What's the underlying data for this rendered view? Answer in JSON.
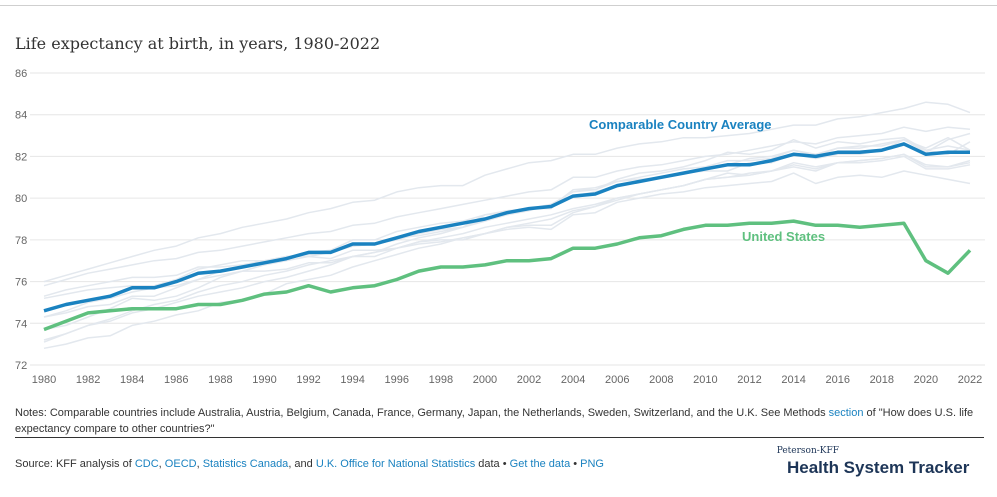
{
  "title": "Life expectancy at birth, in years, 1980-2022",
  "notes": {
    "before_link": "Notes: Comparable countries include Australia, Austria, Belgium, Canada, France, Germany, Japan, the Netherlands, Sweden, Switzerland, and the U.K. See Methods ",
    "link": "section",
    "after_link": " of \"How does U.S. life expectancy compare to other countries?\""
  },
  "source": {
    "prefix": "Source: KFF analysis of ",
    "cdc": "CDC",
    "sep1": ", ",
    "oecd": "OECD",
    "sep2": ", ",
    "statcan": "Statistics Canada",
    "sep3": ", and ",
    "ons": "U.K. Office for National Statistics",
    "data_word": " data • ",
    "get_data": "Get the data",
    "bullet": " • ",
    "png": "PNG"
  },
  "brand": {
    "small": "Peterson-KFF",
    "large": "Health System Tracker"
  },
  "colors": {
    "comparable": "#1a82c0",
    "us": "#5fc07f",
    "background_lines": "#e3e8ee",
    "grid": "#e6e6e6",
    "text": "#333333",
    "link": "#1a82c0"
  },
  "chart_data": {
    "type": "line",
    "title": "Life expectancy at birth, in years, 1980-2022",
    "xlabel": "",
    "ylabel": "",
    "xlim": [
      1980,
      2022
    ],
    "ylim": [
      72,
      86
    ],
    "x_ticks": [
      "1980",
      "1982",
      "1984",
      "1986",
      "1988",
      "1990",
      "1992",
      "1994",
      "1996",
      "1998",
      "2000",
      "2002",
      "2004",
      "2006",
      "2008",
      "2010",
      "2012",
      "2014",
      "2016",
      "2018",
      "2020",
      "2022"
    ],
    "y_ticks": [
      "72",
      "74",
      "76",
      "78",
      "80",
      "82",
      "84",
      "86"
    ],
    "grid": true,
    "x": [
      1980,
      1981,
      1982,
      1983,
      1984,
      1985,
      1986,
      1987,
      1988,
      1989,
      1990,
      1991,
      1992,
      1993,
      1994,
      1995,
      1996,
      1997,
      1998,
      1999,
      2000,
      2001,
      2002,
      2003,
      2004,
      2005,
      2006,
      2007,
      2008,
      2009,
      2010,
      2011,
      2012,
      2013,
      2014,
      2015,
      2016,
      2017,
      2018,
      2019,
      2020,
      2021,
      2022
    ],
    "series": [
      {
        "name": "Comparable Country Average",
        "label": "Comparable Country Average",
        "values": [
          74.6,
          74.9,
          75.1,
          75.3,
          75.7,
          75.7,
          76.0,
          76.4,
          76.5,
          76.7,
          76.9,
          77.1,
          77.4,
          77.4,
          77.8,
          77.8,
          78.1,
          78.4,
          78.6,
          78.8,
          79.0,
          79.3,
          79.5,
          79.6,
          80.1,
          80.2,
          80.6,
          80.8,
          81.0,
          81.2,
          81.4,
          81.6,
          81.6,
          81.8,
          82.1,
          82.0,
          82.2,
          82.2,
          82.3,
          82.6,
          82.1,
          82.2,
          82.2
        ]
      },
      {
        "name": "United States",
        "label": "United States",
        "values": [
          73.7,
          74.1,
          74.5,
          74.6,
          74.7,
          74.7,
          74.7,
          74.9,
          74.9,
          75.1,
          75.4,
          75.5,
          75.8,
          75.5,
          75.7,
          75.8,
          76.1,
          76.5,
          76.7,
          76.7,
          76.8,
          77.0,
          77.0,
          77.1,
          77.6,
          77.6,
          77.8,
          78.1,
          78.2,
          78.5,
          78.7,
          78.7,
          78.8,
          78.8,
          78.9,
          78.7,
          78.7,
          78.6,
          78.7,
          78.8,
          77.0,
          76.4,
          77.5
        ]
      }
    ],
    "background_series": [
      {
        "values": [
          76.0,
          76.3,
          76.6,
          76.9,
          77.2,
          77.5,
          77.7,
          78.1,
          78.3,
          78.6,
          78.8,
          79.0,
          79.3,
          79.5,
          79.8,
          79.9,
          80.3,
          80.5,
          80.6,
          80.6,
          81.1,
          81.4,
          81.7,
          81.8,
          82.1,
          82.1,
          82.4,
          82.6,
          82.7,
          82.9,
          82.9,
          83.0,
          83.1,
          83.3,
          83.5,
          83.5,
          83.8,
          83.9,
          84.1,
          84.3,
          84.6,
          84.5,
          84.1
        ]
      },
      {
        "values": [
          75.8,
          76.1,
          76.4,
          76.6,
          76.8,
          77.0,
          77.1,
          77.4,
          77.5,
          77.7,
          77.9,
          78.1,
          78.3,
          78.4,
          78.7,
          78.8,
          79.1,
          79.3,
          79.5,
          79.7,
          79.9,
          80.1,
          80.3,
          80.4,
          81.0,
          81.0,
          81.3,
          81.5,
          81.6,
          81.8,
          82.0,
          82.1,
          82.3,
          82.5,
          82.7,
          82.6,
          82.9,
          83.0,
          83.1,
          83.4,
          83.2,
          83.4,
          83.3
        ]
      },
      {
        "values": [
          74.3,
          74.6,
          75.0,
          75.2,
          75.5,
          75.7,
          75.8,
          76.1,
          76.3,
          76.5,
          76.8,
          77.0,
          77.2,
          77.4,
          77.7,
          77.8,
          78.0,
          78.3,
          78.5,
          78.6,
          79.0,
          79.3,
          79.5,
          79.7,
          80.3,
          80.4,
          80.8,
          81.0,
          81.2,
          81.4,
          81.5,
          81.8,
          81.8,
          81.9,
          82.3,
          82.0,
          82.4,
          82.4,
          82.6,
          82.8,
          82.4,
          82.9,
          82.3
        ]
      },
      {
        "values": [
          75.3,
          75.6,
          75.8,
          76.0,
          76.2,
          76.2,
          76.3,
          76.7,
          76.7,
          76.8,
          77.0,
          77.2,
          77.3,
          77.4,
          77.7,
          77.8,
          78.1,
          78.2,
          78.4,
          78.6,
          79.2,
          79.3,
          79.5,
          79.6,
          80.4,
          80.5,
          80.8,
          80.9,
          81.0,
          81.2,
          81.3,
          81.3,
          81.7,
          81.7,
          82.1,
          81.9,
          82.1,
          82.1,
          82.3,
          82.8,
          82.3,
          82.1,
          82.7
        ]
      },
      {
        "values": [
          74.3,
          74.5,
          74.8,
          74.9,
          75.3,
          75.3,
          75.7,
          76.1,
          76.5,
          76.7,
          76.9,
          77.1,
          77.4,
          77.5,
          78.0,
          78.0,
          78.4,
          78.6,
          78.8,
          78.9,
          79.2,
          79.4,
          79.5,
          79.5,
          80.4,
          80.4,
          80.9,
          81.2,
          81.3,
          81.5,
          81.8,
          82.2,
          82.1,
          82.3,
          82.8,
          82.4,
          82.7,
          82.6,
          82.8,
          82.9,
          82.3,
          82.5,
          82.3
        ]
      },
      {
        "values": [
          73.7,
          73.9,
          74.3,
          74.7,
          75.2,
          75.1,
          75.3,
          75.7,
          76.2,
          76.5,
          76.5,
          76.6,
          76.9,
          76.9,
          77.2,
          77.2,
          77.6,
          77.8,
          77.9,
          78.1,
          78.3,
          78.5,
          78.6,
          78.5,
          79.2,
          79.3,
          79.8,
          80.0,
          80.2,
          80.3,
          80.5,
          80.6,
          80.7,
          80.8,
          81.2,
          80.7,
          81.0,
          81.1,
          81.0,
          81.3,
          81.1,
          80.9,
          80.7
        ]
      },
      {
        "values": [
          75.2,
          75.4,
          75.6,
          75.7,
          75.8,
          75.8,
          76.1,
          76.6,
          76.8,
          77.0,
          77.0,
          77.2,
          77.2,
          77.1,
          77.5,
          77.5,
          77.6,
          77.9,
          78.0,
          78.0,
          78.3,
          78.6,
          78.7,
          78.7,
          79.3,
          79.6,
          79.9,
          80.2,
          80.4,
          80.6,
          80.9,
          81.2,
          81.1,
          81.3,
          81.7,
          81.5,
          81.7,
          81.8,
          81.9,
          82.1,
          81.5,
          81.5,
          81.7
        ]
      },
      {
        "values": [
          73.1,
          73.5,
          73.9,
          74.2,
          74.6,
          74.9,
          75.1,
          75.5,
          75.8,
          76.0,
          76.3,
          76.5,
          76.8,
          77.0,
          77.2,
          77.4,
          77.6,
          77.9,
          78.1,
          78.3,
          78.6,
          78.8,
          79.0,
          79.2,
          79.5,
          79.7,
          80.0,
          80.2,
          80.4,
          80.6,
          80.9,
          81.0,
          81.2,
          81.3,
          81.6,
          81.4,
          81.7,
          81.8,
          81.9,
          82.1,
          81.6,
          81.5,
          81.8
        ]
      },
      {
        "values": [
          72.8,
          73.0,
          73.3,
          73.4,
          73.9,
          74.1,
          74.4,
          74.6,
          75.0,
          75.1,
          75.4,
          75.9,
          76.1,
          76.3,
          76.7,
          77.0,
          77.3,
          77.6,
          77.8,
          78.1,
          78.3,
          78.6,
          78.8,
          79.0,
          79.4,
          79.6,
          80.0,
          80.2,
          80.4,
          80.6,
          80.9,
          81.0,
          81.1,
          81.3,
          81.5,
          81.3,
          81.7,
          81.7,
          81.8,
          82.0,
          81.4,
          81.4,
          81.6
        ]
      },
      {
        "values": [
          73.2,
          73.5,
          73.9,
          74.1,
          74.5,
          74.7,
          75.0,
          75.3,
          75.5,
          75.7,
          76.0,
          76.2,
          76.5,
          76.8,
          77.2,
          77.4,
          77.8,
          78.1,
          78.3,
          78.6,
          78.9,
          79.2,
          79.4,
          79.7,
          80.1,
          80.3,
          80.6,
          80.8,
          81.0,
          81.2,
          81.4,
          81.6,
          81.9,
          82.0,
          82.3,
          82.1,
          82.4,
          82.5,
          82.5,
          82.8,
          82.2,
          82.8,
          83.1
        ]
      }
    ]
  }
}
